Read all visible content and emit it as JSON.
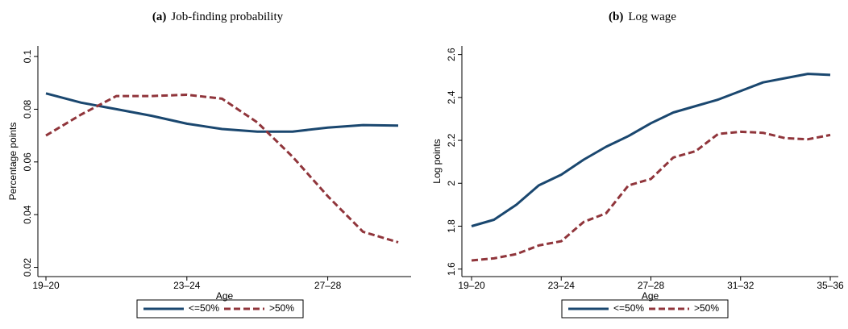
{
  "chart_data": [
    {
      "type": "line",
      "label": "(a)",
      "title": "Job-finding probability",
      "xlabel": "Age",
      "ylabel": "Percentage points",
      "categories": [
        "19–20",
        null,
        null,
        null,
        "23–24",
        null,
        null,
        null,
        "27–28",
        null,
        null
      ],
      "ylim": [
        0.0165,
        0.104
      ],
      "yticks": [
        0.02,
        0.04,
        0.06,
        0.08,
        0.1
      ],
      "series": [
        {
          "name": "<=50%",
          "color": "#1a476f",
          "dash": false,
          "values": [
            0.086,
            0.0825,
            0.08,
            0.0775,
            0.0745,
            0.0725,
            0.0715,
            0.0715,
            0.073,
            0.074,
            0.0738
          ]
        },
        {
          "name": ">50%",
          "color": "#90353b",
          "dash": true,
          "values": [
            0.07,
            0.078,
            0.085,
            0.085,
            0.0855,
            0.084,
            0.075,
            0.062,
            0.047,
            0.0335,
            0.0295
          ]
        }
      ]
    },
    {
      "type": "line",
      "label": "(b)",
      "title": "Log wage",
      "xlabel": "Age",
      "ylabel": "Log points",
      "categories": [
        "19–20",
        null,
        null,
        null,
        "23–24",
        null,
        null,
        null,
        "27–28",
        null,
        null,
        null,
        "31–32",
        null,
        null,
        null,
        "35–36"
      ],
      "ylim": [
        1.565,
        2.64
      ],
      "yticks": [
        1.6,
        1.8,
        2,
        2.2,
        2.4,
        2.6
      ],
      "series": [
        {
          "name": "<=50%",
          "color": "#1a476f",
          "dash": false,
          "values": [
            1.8,
            1.83,
            1.9,
            1.99,
            2.04,
            2.11,
            2.17,
            2.22,
            2.28,
            2.33,
            2.36,
            2.39,
            2.43,
            2.47,
            2.49,
            2.51,
            2.505
          ]
        },
        {
          "name": ">50%",
          "color": "#90353b",
          "dash": true,
          "values": [
            1.64,
            1.65,
            1.67,
            1.71,
            1.73,
            1.82,
            1.86,
            1.99,
            2.02,
            2.12,
            2.15,
            2.23,
            2.24,
            2.235,
            2.21,
            2.205,
            2.225
          ]
        }
      ]
    }
  ]
}
